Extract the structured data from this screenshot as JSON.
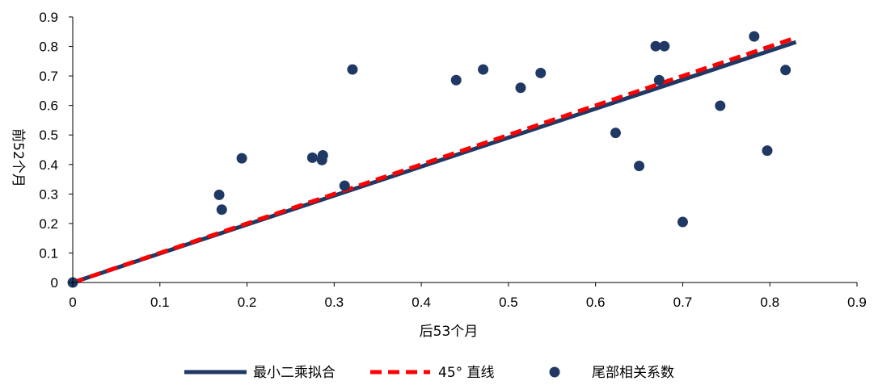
{
  "chart_data": {
    "type": "scatter",
    "xlabel": "后53个月",
    "ylabel": "前52个月",
    "xlim": [
      0,
      0.9
    ],
    "ylim": [
      0,
      0.9
    ],
    "x_ticks": [
      "0",
      "0.1",
      "0.2",
      "0.3",
      "0.4",
      "0.5",
      "0.6",
      "0.7",
      "0.8",
      "0.9"
    ],
    "y_ticks": [
      "0",
      "0.1",
      "0.2",
      "0.3",
      "0.4",
      "0.5",
      "0.6",
      "0.7",
      "0.8",
      "0.9"
    ],
    "grid": false,
    "legend_position": "bottom",
    "series": [
      {
        "name": "最小二乘拟合",
        "type": "line",
        "color": "#1f3864",
        "x": [
          0,
          0.83
        ],
        "y": [
          0,
          0.815
        ]
      },
      {
        "name": "45° 直线",
        "type": "line",
        "dashed": true,
        "color": "#ff0000",
        "x": [
          0,
          0.828
        ],
        "y": [
          0,
          0.828
        ]
      },
      {
        "name": "尾部相关系数",
        "type": "scatter",
        "color": "#1f3864",
        "x": [
          0,
          0.168,
          0.171,
          0.194,
          0.275,
          0.286,
          0.287,
          0.312,
          0.321,
          0.44,
          0.471,
          0.514,
          0.537,
          0.623,
          0.65,
          0.669,
          0.673,
          0.679,
          0.7,
          0.743,
          0.782,
          0.797,
          0.818
        ],
        "y": [
          0,
          0.297,
          0.247,
          0.421,
          0.423,
          0.415,
          0.431,
          0.328,
          0.722,
          0.686,
          0.722,
          0.66,
          0.71,
          0.507,
          0.395,
          0.801,
          0.686,
          0.801,
          0.205,
          0.599,
          0.834,
          0.447,
          0.72
        ]
      }
    ]
  }
}
